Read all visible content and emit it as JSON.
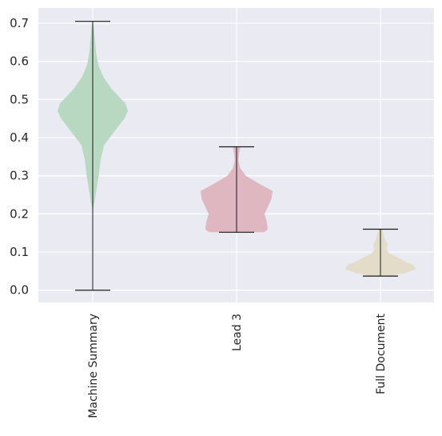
{
  "chart_data": {
    "type": "violin",
    "title": "",
    "xlabel": "",
    "ylabel": "",
    "ylim": [
      -0.032,
      0.74
    ],
    "yticks": [
      0.0,
      0.1,
      0.2,
      0.3,
      0.4,
      0.5,
      0.6,
      0.7
    ],
    "ytick_labels": [
      "0.0",
      "0.1",
      "0.2",
      "0.3",
      "0.4",
      "0.5",
      "0.6",
      "0.7"
    ],
    "grid": true,
    "legend": "none",
    "categories": [
      "Machine Summary",
      "Lead 3",
      "Full Document"
    ],
    "series": [
      {
        "category": "Machine Summary",
        "color": "#b8d8c2",
        "min": 0.0,
        "max": 0.705,
        "density": [
          [
            0.21,
            0.0
          ],
          [
            0.23,
            0.05
          ],
          [
            0.26,
            0.1
          ],
          [
            0.3,
            0.17
          ],
          [
            0.34,
            0.22
          ],
          [
            0.38,
            0.32
          ],
          [
            0.42,
            0.65
          ],
          [
            0.45,
            0.9
          ],
          [
            0.47,
            1.0
          ],
          [
            0.49,
            0.93
          ],
          [
            0.51,
            0.72
          ],
          [
            0.53,
            0.52
          ],
          [
            0.56,
            0.3
          ],
          [
            0.59,
            0.16
          ],
          [
            0.62,
            0.1
          ],
          [
            0.65,
            0.07
          ],
          [
            0.67,
            0.05
          ],
          [
            0.69,
            0.03
          ],
          [
            0.705,
            0.0
          ]
        ]
      },
      {
        "category": "Lead 3",
        "color": "#deb7c1",
        "min": 0.152,
        "max": 0.376,
        "density": [
          [
            0.152,
            0.75
          ],
          [
            0.16,
            0.85
          ],
          [
            0.18,
            0.82
          ],
          [
            0.2,
            0.76
          ],
          [
            0.22,
            0.86
          ],
          [
            0.24,
            0.95
          ],
          [
            0.26,
            0.98
          ],
          [
            0.28,
            0.6
          ],
          [
            0.3,
            0.25
          ],
          [
            0.32,
            0.1
          ],
          [
            0.34,
            0.05
          ],
          [
            0.36,
            0.07
          ],
          [
            0.376,
            0.1
          ]
        ]
      },
      {
        "category": "Full Document",
        "color": "#e2dcc8",
        "min": 0.037,
        "max": 0.16,
        "density": [
          [
            0.037,
            0.3
          ],
          [
            0.045,
            0.7
          ],
          [
            0.055,
            1.0
          ],
          [
            0.065,
            0.95
          ],
          [
            0.075,
            0.7
          ],
          [
            0.085,
            0.5
          ],
          [
            0.095,
            0.28
          ],
          [
            0.105,
            0.18
          ],
          [
            0.12,
            0.2
          ],
          [
            0.135,
            0.12
          ],
          [
            0.15,
            0.08
          ],
          [
            0.16,
            0.05
          ]
        ]
      }
    ]
  }
}
